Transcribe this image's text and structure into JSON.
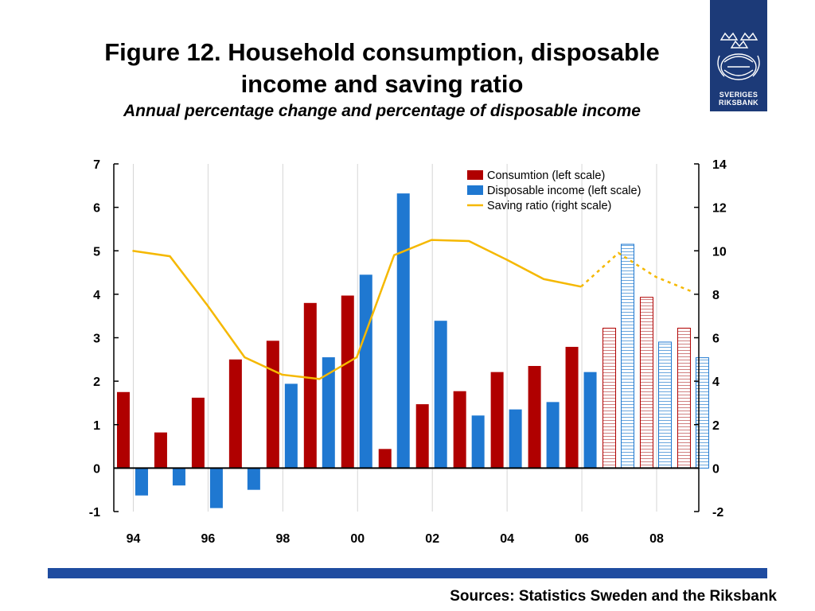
{
  "header": {
    "title_line1": "Figure 12. Household consumption, disposable",
    "title_line2": "income and saving ratio",
    "subtitle": "Annual percentage change and percentage of disposable income"
  },
  "logo": {
    "line1": "SVERIGES",
    "line2": "RIKSBANK"
  },
  "footer": {
    "sources": "Sources: Statistics Sweden and the Riksbank"
  },
  "colors": {
    "consumption": "#b00000",
    "income": "#1f78d1",
    "saving": "#f5b800",
    "forecast_stripe_red": "#d08080",
    "forecast_stripe_blue": "#6aa6dd",
    "footer_bar": "#1f4ca0",
    "logo_bg": "#1c3a78"
  },
  "chart_data": {
    "type": "bar",
    "categories": [
      "94",
      "95",
      "96",
      "97",
      "98",
      "99",
      "00",
      "01",
      "02",
      "03",
      "04",
      "05",
      "06",
      "07",
      "08",
      "09"
    ],
    "x_tick_labels": [
      "94",
      "96",
      "98",
      "00",
      "02",
      "04",
      "06",
      "08"
    ],
    "left_axis": {
      "ylim": [
        -1,
        7
      ],
      "ticks": [
        -1,
        0,
        1,
        2,
        3,
        4,
        5,
        6,
        7
      ]
    },
    "right_axis": {
      "ylim": [
        -2,
        14
      ],
      "ticks": [
        -2,
        0,
        2,
        4,
        6,
        8,
        10,
        12,
        14
      ]
    },
    "forecast_from": "07",
    "grid": "vertical",
    "legend_position": "top-right",
    "series": [
      {
        "name": "Consumtion (left scale)",
        "type": "bar",
        "axis": "left",
        "values": [
          1.75,
          0.82,
          1.62,
          2.5,
          2.93,
          3.8,
          3.97,
          0.44,
          1.47,
          1.77,
          2.21,
          2.35,
          2.79,
          3.22,
          3.93,
          3.22
        ]
      },
      {
        "name": "Disposable income (left scale)",
        "type": "bar",
        "axis": "left",
        "values": [
          -0.63,
          -0.4,
          -0.92,
          -0.5,
          1.94,
          2.55,
          4.45,
          6.32,
          3.39,
          1.21,
          1.35,
          1.52,
          2.21,
          5.15,
          2.9,
          2.54
        ]
      },
      {
        "name": "Saving ratio (right scale)",
        "type": "line",
        "axis": "right",
        "values": [
          10.0,
          9.75,
          7.5,
          5.1,
          4.3,
          4.1,
          5.1,
          9.8,
          10.5,
          10.45,
          9.6,
          8.7,
          8.35,
          9.9,
          8.8,
          8.1
        ]
      }
    ]
  }
}
